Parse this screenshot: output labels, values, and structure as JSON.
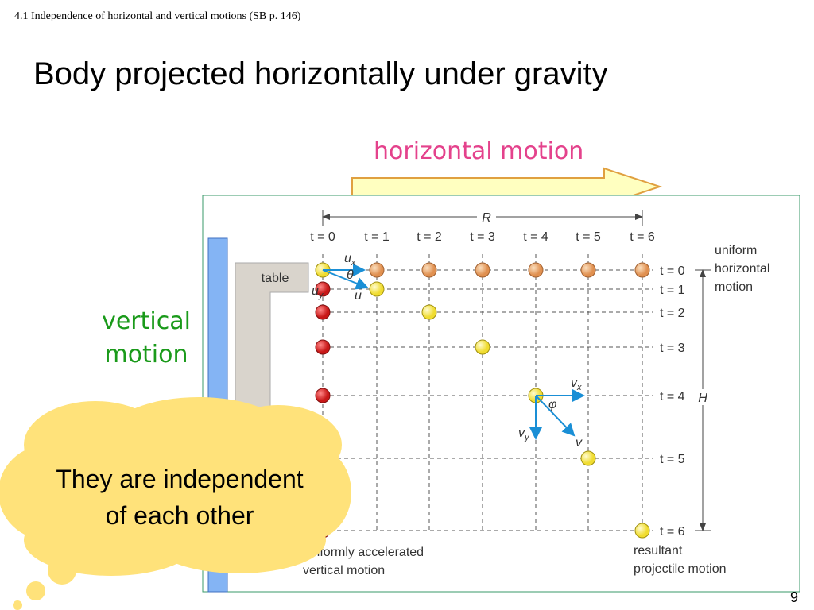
{
  "header": {
    "section": "4.1  Independence of horizontal and vertical motions (SB p. 146)",
    "title": "Body projected horizontally under gravity"
  },
  "horizontal_motion": "horizontal motion",
  "vertical_motion": [
    "vertical",
    "motion"
  ],
  "cloud": [
    "They are independent",
    "of each other"
  ],
  "page_number": "9",
  "diagram": {
    "range_label": "R",
    "height_label": "H",
    "table_label": "table",
    "top_times": [
      "t = 0",
      "t = 1",
      "t = 2",
      "t = 3",
      "t = 4",
      "t = 5",
      "t = 6"
    ],
    "side_times": [
      "t = 0",
      "t = 1",
      "t = 2",
      "t = 3",
      "t = 4",
      "t = 5",
      "t = 6"
    ],
    "uniform_horizontal": [
      "uniform",
      "horizontal",
      "motion"
    ],
    "uniformly_accelerated": [
      "uniformly accelerated",
      "vertical motion"
    ],
    "resultant": [
      "resultant",
      "projectile motion"
    ],
    "vectors": {
      "ux": {
        "base": "u",
        "sub": "x"
      },
      "uy": {
        "base": "u",
        "sub": "y"
      },
      "u": "u",
      "theta": "θ",
      "vx": {
        "base": "v",
        "sub": "x"
      },
      "vy": {
        "base": "v",
        "sub": "y"
      },
      "v": "v",
      "phi": "φ"
    }
  }
}
